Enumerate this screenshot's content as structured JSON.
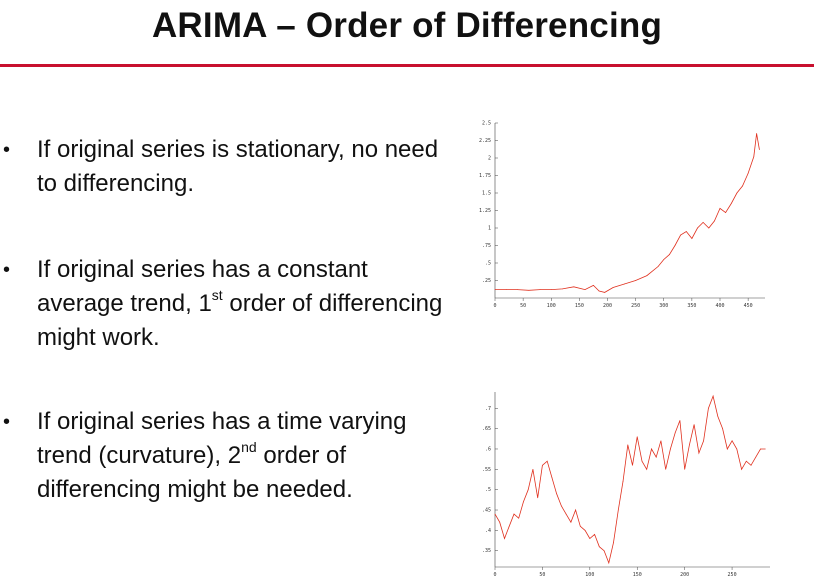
{
  "slide": {
    "title": "ARIMA – Order of Differencing",
    "accent_color": "#c8102e"
  },
  "bullets": [
    {
      "pre": "If original series is stationary, no need to differencing.",
      "sup": "",
      "post": ""
    },
    {
      "pre": "If original series has a constant average trend, 1",
      "sup": "st",
      "post": " order of differencing might work."
    },
    {
      "pre": "If original series has a time varying trend (curvature), 2",
      "sup": "nd",
      "post": " order of differencing might be needed."
    }
  ],
  "chart_data": [
    {
      "type": "line",
      "title": "",
      "xlabel": "",
      "ylabel": "",
      "color": "#e0301e",
      "xlim": [
        0,
        480
      ],
      "ylim": [
        0,
        2.5
      ],
      "x_ticks": [
        0,
        50,
        100,
        150,
        200,
        250,
        300,
        350,
        400,
        450
      ],
      "x_tick_labels": [
        "0",
        "50",
        "100",
        "150",
        "200",
        "250",
        "300",
        "350",
        "400",
        "450"
      ],
      "y_ticks": [
        0.25,
        0.5,
        0.75,
        1,
        1.25,
        1.5,
        1.75,
        2,
        2.25,
        2.5
      ],
      "y_tick_labels": [
        ".25",
        ".5",
        ".75",
        "1",
        "1.25",
        "1.5",
        "1.75",
        "2",
        "2.25",
        "2.5"
      ],
      "x": [
        0,
        20,
        40,
        60,
        80,
        100,
        120,
        140,
        160,
        175,
        185,
        195,
        210,
        230,
        250,
        270,
        290,
        300,
        310,
        320,
        330,
        340,
        350,
        360,
        370,
        380,
        390,
        400,
        410,
        420,
        430,
        440,
        450,
        460,
        465,
        470
      ],
      "y": [
        0.12,
        0.12,
        0.12,
        0.11,
        0.12,
        0.12,
        0.13,
        0.16,
        0.12,
        0.18,
        0.1,
        0.08,
        0.15,
        0.2,
        0.25,
        0.32,
        0.45,
        0.55,
        0.62,
        0.75,
        0.9,
        0.95,
        0.85,
        1.0,
        1.08,
        1.0,
        1.1,
        1.28,
        1.22,
        1.35,
        1.5,
        1.6,
        1.78,
        2.02,
        2.35,
        2.12
      ]
    },
    {
      "type": "line",
      "title": "",
      "xlabel": "",
      "ylabel": "",
      "color": "#e0301e",
      "xlim": [
        0,
        290
      ],
      "ylim": [
        0.31,
        0.74
      ],
      "x_ticks": [
        0,
        50,
        100,
        150,
        200,
        250
      ],
      "x_tick_labels": [
        "0",
        "50",
        "100",
        "150",
        "200",
        "250"
      ],
      "y_ticks": [
        0.35,
        0.4,
        0.45,
        0.5,
        0.55,
        0.6,
        0.65,
        0.7
      ],
      "y_tick_labels": [
        ".35",
        ".4",
        ".45",
        ".5",
        ".55",
        ".6",
        ".65",
        ".7"
      ],
      "x": [
        0,
        5,
        10,
        15,
        20,
        25,
        30,
        35,
        40,
        45,
        50,
        55,
        60,
        65,
        70,
        75,
        80,
        85,
        90,
        95,
        100,
        105,
        110,
        115,
        120,
        125,
        130,
        135,
        140,
        145,
        150,
        155,
        160,
        165,
        170,
        175,
        180,
        185,
        190,
        195,
        200,
        205,
        210,
        215,
        220,
        225,
        230,
        235,
        240,
        245,
        250,
        255,
        260,
        265,
        270,
        275,
        280,
        285
      ],
      "y": [
        0.44,
        0.42,
        0.38,
        0.41,
        0.44,
        0.43,
        0.47,
        0.5,
        0.55,
        0.48,
        0.56,
        0.57,
        0.53,
        0.49,
        0.46,
        0.44,
        0.42,
        0.45,
        0.41,
        0.4,
        0.38,
        0.39,
        0.36,
        0.35,
        0.32,
        0.37,
        0.45,
        0.52,
        0.61,
        0.56,
        0.63,
        0.57,
        0.55,
        0.6,
        0.58,
        0.62,
        0.55,
        0.6,
        0.64,
        0.67,
        0.55,
        0.61,
        0.66,
        0.59,
        0.62,
        0.7,
        0.73,
        0.68,
        0.65,
        0.6,
        0.62,
        0.6,
        0.55,
        0.57,
        0.56,
        0.58,
        0.6,
        0.6
      ]
    }
  ]
}
